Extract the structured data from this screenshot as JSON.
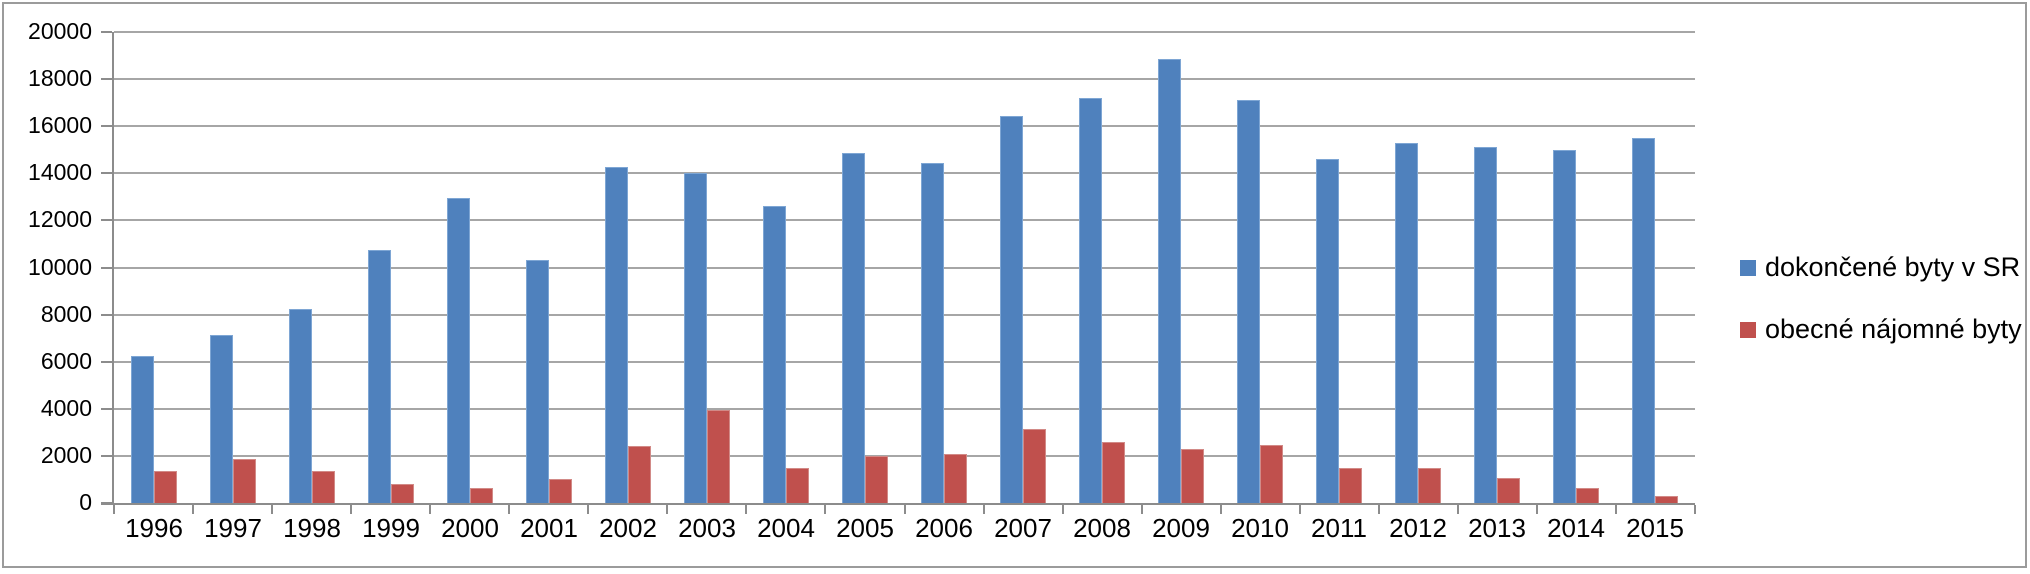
{
  "chart_data": {
    "type": "bar",
    "title": "",
    "categories": [
      "1996",
      "1997",
      "1998",
      "1999",
      "2000",
      "2001",
      "2002",
      "2003",
      "2004",
      "2005",
      "2006",
      "2007",
      "2008",
      "2009",
      "2010",
      "2011",
      "2012",
      "2013",
      "2014",
      "2015"
    ],
    "series": [
      {
        "name": "dokončené byty v SR",
        "color": "#4f81bd",
        "border_color": "#7ea6d4",
        "values": [
          6250,
          7150,
          8250,
          10750,
          12950,
          10300,
          14250,
          14000,
          12600,
          14850,
          14450,
          16450,
          17200,
          18850,
          17100,
          14600,
          15300,
          15100,
          15000,
          15500
        ]
      },
      {
        "name": "obecné nájomné byty",
        "color": "#c0504d",
        "border_color": "#d28a87",
        "values": [
          1350,
          1850,
          1350,
          800,
          650,
          1000,
          2400,
          3950,
          1500,
          2000,
          2100,
          3150,
          2600,
          2300,
          2450,
          1500,
          1500,
          1050,
          650,
          300
        ]
      }
    ],
    "xlabel": "",
    "ylabel": "",
    "ylim": [
      0,
      20000
    ],
    "ytick_step": 2000,
    "ytick_labels": [
      "0",
      "2000",
      "4000",
      "6000",
      "8000",
      "10000",
      "12000",
      "14000",
      "16000",
      "18000",
      "20000"
    ],
    "grid": "horizontal",
    "legend_position": "right"
  },
  "colors": {
    "gridline": "#a6a6a6",
    "axis": "#8c8c8c",
    "frame": "#9b9b9b",
    "text": "#000000",
    "background": "#ffffff"
  }
}
